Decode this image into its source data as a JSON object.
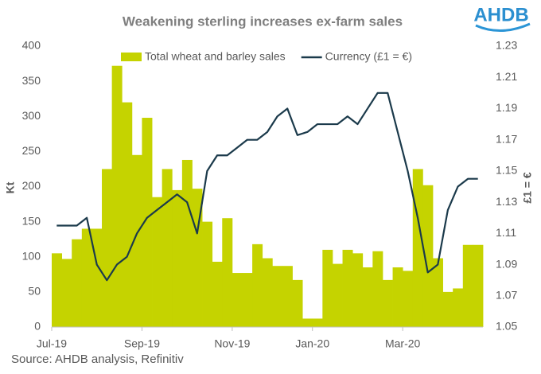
{
  "logo": "AHDB",
  "source": "Source: AHDB analysis, Refinitiv",
  "chart_data": {
    "type": "bar-line",
    "title": "Weakening sterling increases ex-farm sales",
    "y_label": "Kt",
    "y2_label": "£1 = €",
    "categories": [
      "Jul-19",
      null,
      null,
      null,
      null,
      null,
      null,
      null,
      null,
      "Sep-19",
      null,
      null,
      null,
      null,
      null,
      null,
      null,
      null,
      "Nov-19",
      null,
      null,
      null,
      null,
      null,
      null,
      null,
      "Jan-20",
      null,
      null,
      null,
      null,
      null,
      null,
      null,
      null,
      "Mar-20",
      null,
      null,
      null,
      null,
      null,
      null,
      null
    ],
    "series": [
      {
        "name": "Total wheat and barley sales",
        "color": "#c5d300",
        "kind": "bar",
        "values": [
          105,
          97,
          125,
          140,
          140,
          225,
          372,
          320,
          245,
          298,
          185,
          225,
          195,
          238,
          197,
          150,
          93,
          155,
          77,
          77,
          118,
          98,
          87,
          87,
          67,
          12,
          12,
          110,
          90,
          110,
          105,
          85,
          108,
          67,
          85,
          80,
          225,
          202,
          98,
          50,
          55,
          117,
          117
        ]
      },
      {
        "name": "Currency (£1 = €)",
        "color": "#1b3a4b",
        "kind": "line",
        "axis": "y2",
        "values": [
          1.115,
          1.115,
          1.115,
          1.12,
          1.09,
          1.08,
          1.09,
          1.095,
          1.11,
          1.12,
          1.125,
          1.13,
          1.135,
          1.13,
          1.11,
          1.15,
          1.16,
          1.16,
          1.165,
          1.17,
          1.17,
          1.175,
          1.185,
          1.19,
          1.173,
          1.175,
          1.18,
          1.18,
          1.18,
          1.185,
          1.18,
          1.19,
          1.2,
          1.2,
          1.175,
          1.15,
          1.12,
          1.085,
          1.09,
          1.125,
          1.14,
          1.145,
          1.145
        ]
      }
    ],
    "ylim": [
      0,
      400
    ],
    "yticks": [
      0,
      50,
      100,
      150,
      200,
      250,
      300,
      350,
      400
    ],
    "y2lim": [
      1.05,
      1.23
    ],
    "y2ticks": [
      1.05,
      1.07,
      1.09,
      1.11,
      1.13,
      1.15,
      1.17,
      1.19,
      1.21,
      1.23
    ],
    "grid": false,
    "legend": "top"
  }
}
